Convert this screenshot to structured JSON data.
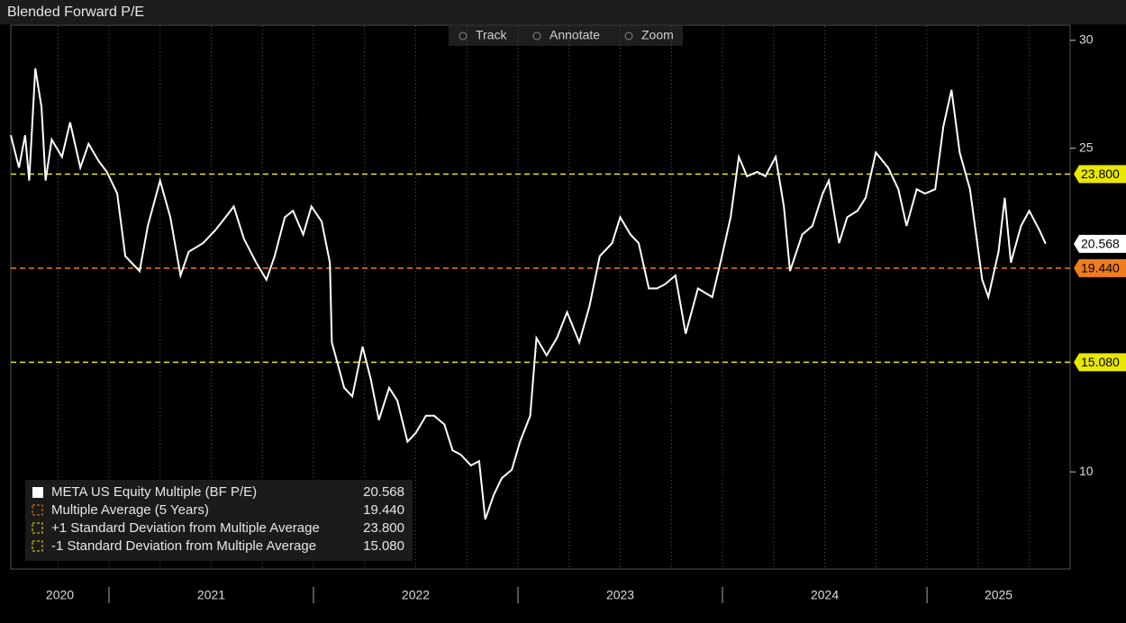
{
  "chart_data": {
    "type": "line",
    "title": "Blended Forward P/E",
    "toolbar": [
      "Track",
      "Annotate",
      "Zoom"
    ],
    "x": [
      2020.52,
      2020.56,
      2020.59,
      2020.61,
      2020.64,
      2020.67,
      2020.69,
      2020.72,
      2020.77,
      2020.81,
      2020.86,
      2020.9,
      2020.95,
      2020.99,
      2021.04,
      2021.08,
      2021.15,
      2021.19,
      2021.25,
      2021.3,
      2021.35,
      2021.39,
      2021.46,
      2021.52,
      2021.57,
      2021.61,
      2021.66,
      2021.72,
      2021.77,
      2021.81,
      2021.86,
      2021.9,
      2021.95,
      2021.99,
      2022.04,
      2022.08,
      2022.09,
      2022.15,
      2022.19,
      2022.24,
      2022.28,
      2022.32,
      2022.37,
      2022.41,
      2022.46,
      2022.5,
      2022.55,
      2022.59,
      2022.64,
      2022.68,
      2022.72,
      2022.77,
      2022.81,
      2022.84,
      2022.88,
      2022.92,
      2022.97,
      2023.01,
      2023.06,
      2023.09,
      2023.14,
      2023.19,
      2023.24,
      2023.3,
      2023.35,
      2023.4,
      2023.46,
      2023.5,
      2023.55,
      2023.59,
      2023.64,
      2023.68,
      2023.72,
      2023.77,
      2023.82,
      2023.88,
      2023.95,
      2023.99,
      2024.04,
      2024.08,
      2024.12,
      2024.17,
      2024.21,
      2024.26,
      2024.3,
      2024.33,
      2024.39,
      2024.44,
      2024.49,
      2024.52,
      2024.57,
      2024.61,
      2024.66,
      2024.7,
      2024.75,
      2024.81,
      2024.86,
      2024.9,
      2024.95,
      2024.99,
      2025.04,
      2025.08,
      2025.12,
      2025.16,
      2025.21,
      2025.27,
      2025.3,
      2025.35,
      2025.38,
      2025.41,
      2025.46,
      2025.5,
      2025.55,
      2025.58
    ],
    "series": [
      {
        "name": "META US Equity Multiple (BF P/E)",
        "color": "#ffffff",
        "values": [
          25.6,
          24.1,
          25.6,
          23.5,
          28.7,
          26.9,
          23.5,
          25.4,
          24.6,
          26.2,
          24.1,
          25.2,
          24.4,
          23.9,
          22.9,
          20.0,
          19.3,
          21.4,
          23.5,
          21.8,
          19.1,
          20.2,
          20.6,
          21.2,
          21.8,
          22.3,
          20.8,
          19.7,
          18.9,
          20.0,
          21.8,
          22.1,
          21.0,
          22.3,
          21.6,
          19.7,
          16.0,
          13.9,
          13.5,
          15.8,
          14.3,
          12.4,
          13.9,
          13.3,
          11.4,
          11.8,
          12.6,
          12.6,
          12.2,
          11.0,
          10.8,
          10.3,
          10.5,
          7.8,
          8.9,
          9.7,
          10.1,
          11.4,
          12.6,
          16.2,
          15.4,
          16.2,
          17.4,
          16.0,
          17.7,
          20.0,
          20.6,
          21.8,
          21.0,
          20.6,
          18.5,
          18.5,
          18.7,
          19.1,
          16.4,
          18.5,
          18.1,
          19.7,
          21.8,
          24.6,
          23.7,
          23.9,
          23.7,
          24.6,
          22.3,
          19.3,
          21.0,
          21.4,
          22.9,
          23.5,
          20.6,
          21.8,
          22.1,
          22.7,
          24.8,
          24.1,
          23.1,
          21.4,
          23.1,
          22.9,
          23.1,
          26.0,
          27.7,
          24.8,
          23.1,
          18.9,
          18.1,
          20.2,
          22.7,
          19.7,
          21.4,
          22.1,
          21.2,
          20.568
        ]
      }
    ],
    "reference_lines": [
      {
        "name": "Multiple Average (5 Years)",
        "value": 19.44,
        "value_label": "19.440",
        "color": "#f07c1e"
      },
      {
        "name": "+1 Standard Deviation from Multiple Average",
        "value": 23.8,
        "value_label": "23.800",
        "color": "#e8e800"
      },
      {
        "name": "-1 Standard Deviation from Multiple Average",
        "value": 15.08,
        "value_label": "15.080",
        "color": "#e8e800"
      }
    ],
    "xlim": [
      2020.52,
      2025.7
    ],
    "xticks": [
      {
        "value": 2020.76,
        "label": "2020"
      },
      {
        "value": 2021.5,
        "label": "2021"
      },
      {
        "value": 2022.5,
        "label": "2022"
      },
      {
        "value": 2023.5,
        "label": "2023"
      },
      {
        "value": 2024.5,
        "label": "2024"
      },
      {
        "value": 2025.35,
        "label": "2025"
      }
    ],
    "ylim": [
      5.5,
      30.7
    ],
    "yticks": [
      10,
      25,
      30
    ]
  }
}
